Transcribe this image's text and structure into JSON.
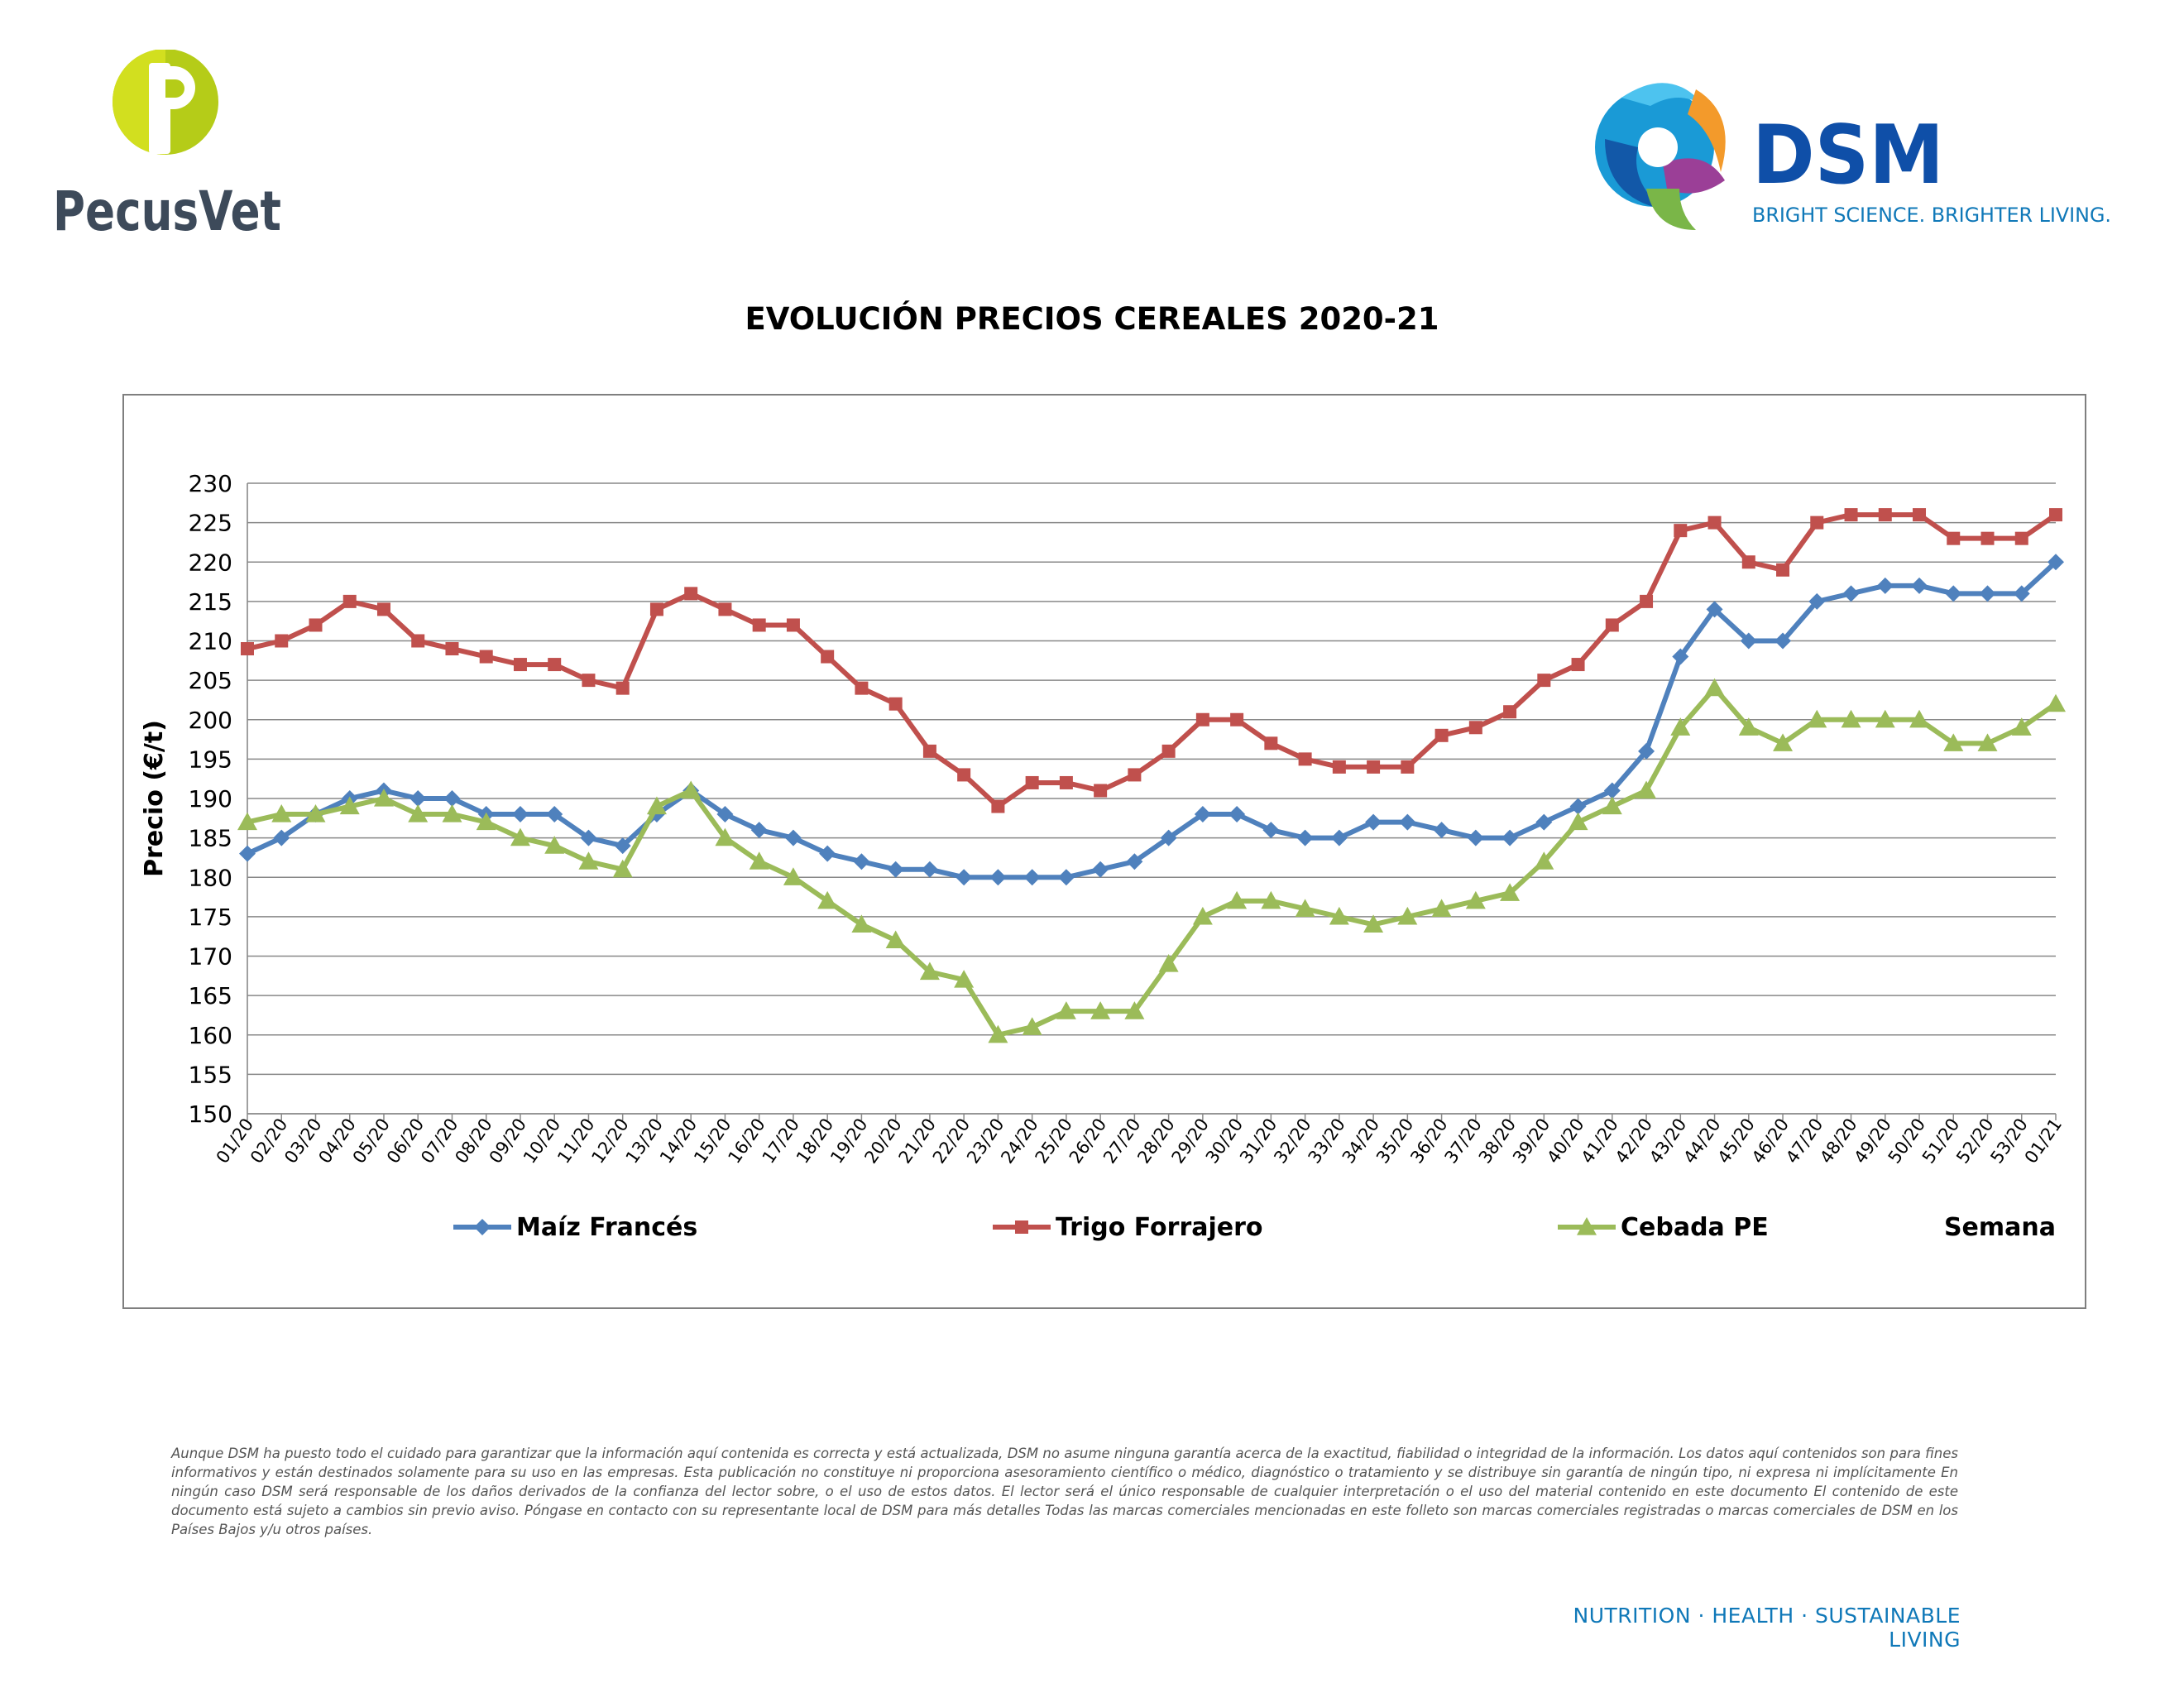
{
  "header": {
    "pecus_logo": {
      "text": "PecusVet",
      "mark_color": "#b5cc18",
      "text_color": "#3d4a5a"
    },
    "dsm_logo": {
      "text": "DSM",
      "slogan": "BRIGHT SCIENCE. BRIGHTER LIVING.",
      "brand_color": "#0f4fa8",
      "slogan_color": "#0f78b8"
    }
  },
  "chart_data": {
    "type": "line",
    "title": "EVOLUCIÓN PRECIOS CEREALES 2020-21",
    "ylabel": "Precio (€/t)",
    "xlabel": "Semana",
    "ylim": [
      150,
      230
    ],
    "ytick_step": 5,
    "grid": true,
    "legend_position": "bottom",
    "categories": [
      "01/20",
      "02/20",
      "03/20",
      "04/20",
      "05/20",
      "06/20",
      "07/20",
      "08/20",
      "09/20",
      "10/20",
      "11/20",
      "12/20",
      "13/20",
      "14/20",
      "15/20",
      "16/20",
      "17/20",
      "18/20",
      "19/20",
      "20/20",
      "21/20",
      "22/20",
      "23/20",
      "24/20",
      "25/20",
      "26/20",
      "27/20",
      "28/20",
      "29/20",
      "30/20",
      "31/20",
      "32/20",
      "33/20",
      "34/20",
      "35/20",
      "36/20",
      "37/20",
      "38/20",
      "39/20",
      "40/20",
      "41/20",
      "42/20",
      "43/20",
      "44/20",
      "45/20",
      "46/20",
      "47/20",
      "48/20",
      "49/20",
      "50/20",
      "51/20",
      "52/20",
      "53/20",
      "01/21"
    ],
    "series": [
      {
        "name": "Maíz Francés",
        "color": "#4f81bd",
        "marker": "diamond",
        "values": [
          183,
          185,
          188,
          190,
          191,
          190,
          190,
          188,
          188,
          188,
          185,
          184,
          188,
          191,
          188,
          186,
          185,
          183,
          182,
          181,
          181,
          180,
          180,
          180,
          180,
          181,
          182,
          185,
          188,
          188,
          186,
          185,
          185,
          187,
          187,
          186,
          185,
          185,
          187,
          189,
          191,
          196,
          208,
          214,
          210,
          210,
          215,
          216,
          217,
          217,
          216,
          216,
          216,
          220
        ]
      },
      {
        "name": "Trigo Forrajero",
        "color": "#c0504d",
        "marker": "square",
        "values": [
          209,
          210,
          212,
          215,
          214,
          210,
          209,
          208,
          207,
          207,
          205,
          204,
          214,
          216,
          214,
          212,
          212,
          208,
          204,
          202,
          196,
          193,
          189,
          192,
          192,
          191,
          193,
          196,
          200,
          200,
          197,
          195,
          194,
          194,
          194,
          198,
          199,
          201,
          205,
          207,
          212,
          215,
          224,
          225,
          220,
          219,
          225,
          226,
          226,
          226,
          223,
          223,
          223,
          226
        ]
      },
      {
        "name": "Cebada PE",
        "color": "#9bbb59",
        "marker": "triangle",
        "values": [
          187,
          188,
          188,
          189,
          190,
          188,
          188,
          187,
          185,
          184,
          182,
          181,
          189,
          191,
          185,
          182,
          180,
          177,
          174,
          172,
          168,
          167,
          160,
          161,
          163,
          163,
          163,
          169,
          175,
          177,
          177,
          176,
          175,
          174,
          175,
          176,
          177,
          178,
          182,
          187,
          189,
          191,
          199,
          204,
          199,
          197,
          200,
          200,
          200,
          200,
          197,
          197,
          199,
          202
        ]
      }
    ]
  },
  "disclaimer": "Aunque DSM ha puesto todo el cuidado para garantizar que la información aquí contenida es correcta y está actualizada, DSM no asume ninguna garantía acerca de la exactitud, fiabilidad o integridad de la información. Los datos aquí contenidos son para fines informativos y están destinados solamente para su uso en las empresas. Esta publicación no constituye ni proporciona asesoramiento científico o médico, diagnóstico o tratamiento y se distribuye sin garantía de ningún tipo, ni expresa ni implícitamente En ningún caso DSM será responsable de los daños derivados de la confianza del lector sobre, o el uso de estos datos. El lector será el único responsable de cualquier interpretación o el uso del material contenido en este documento El contenido de este documento está sujeto a cambios sin previo aviso. Póngase en contacto con su representante local de DSM para más detalles Todas las marcas comerciales mencionadas en este folleto son marcas comerciales registradas o marcas comerciales de DSM en los Países Bajos y/u otros países.",
  "footer_tagline": "NUTRITION · HEALTH · SUSTAINABLE LIVING"
}
